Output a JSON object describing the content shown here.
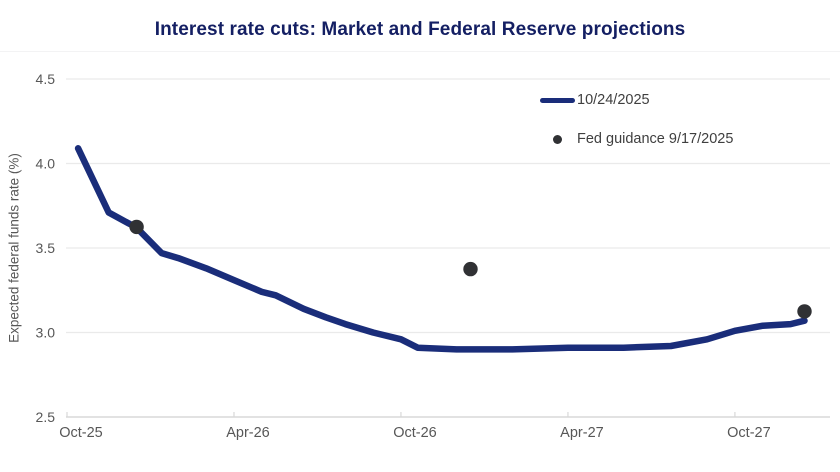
{
  "colors": {
    "title": "#141f63",
    "line": "#1a2d7a",
    "dot": "#303134",
    "grid": "#eaeaea",
    "axis_line": "#d8d8d8",
    "tick_text": "#575757",
    "legend_text": "#3f3f3f"
  },
  "chart_data": {
    "type": "line",
    "title": "Interest rate cuts: Market and Federal Reserve projections",
    "xlabel": "",
    "ylabel": "Expected federal funds rate (%)",
    "ylim": [
      2.5,
      4.5
    ],
    "y_ticks": [
      2.5,
      3.0,
      3.5,
      4.0,
      4.5
    ],
    "x_ticks": [
      {
        "label": "Oct-25",
        "month": 0
      },
      {
        "label": "Apr-26",
        "month": 6
      },
      {
        "label": "Oct-26",
        "month": 12
      },
      {
        "label": "Apr-27",
        "month": 18
      },
      {
        "label": "Oct-27",
        "month": 24
      }
    ],
    "grid": "horizontal gridlines on, vertical off",
    "legend_position": "top-right",
    "series": [
      {
        "name": "10/24/2025",
        "type": "line",
        "x_unit": "months after Oct-2025",
        "x_months": [
          0.4,
          1.5,
          2.5,
          3.4,
          4,
          5,
          6,
          7,
          7.5,
          8.5,
          9.3,
          10,
          11,
          12,
          12.6,
          14,
          16,
          18,
          20,
          21.7,
          23,
          24,
          25,
          26,
          26.5
        ],
        "values": [
          4.09,
          3.71,
          3.62,
          3.47,
          3.44,
          3.38,
          3.31,
          3.24,
          3.22,
          3.14,
          3.09,
          3.05,
          3.0,
          2.96,
          2.91,
          2.9,
          2.9,
          2.91,
          2.91,
          2.92,
          2.96,
          3.01,
          3.04,
          3.05,
          3.07
        ]
      },
      {
        "name": "Fed guidance 9/17/2025",
        "type": "scatter",
        "points": [
          {
            "label": "Dec-25",
            "x_month": 2.5,
            "value": 3.625
          },
          {
            "label": "Dec-26",
            "x_month": 14.5,
            "value": 3.375
          },
          {
            "label": "Dec-27",
            "x_month": 26.5,
            "value": 3.125
          }
        ]
      }
    ]
  }
}
